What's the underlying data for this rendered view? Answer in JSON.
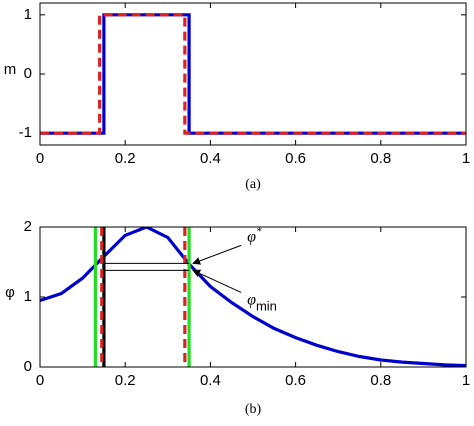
{
  "chart_data": [
    {
      "type": "line",
      "caption": "(a)",
      "ylabel": "m",
      "xlim": [
        0,
        1
      ],
      "xticks": [
        0,
        0.2,
        0.4,
        0.6,
        0.8,
        1
      ],
      "ylim": [
        -1.2,
        1.2
      ],
      "yticks": [
        -1,
        0,
        1
      ],
      "series": [
        {
          "color": "#0000cc",
          "style": "solid",
          "x": [
            0,
            0.15,
            0.15,
            0.35,
            0.35,
            1
          ],
          "values": [
            -1,
            -1,
            1,
            1,
            -1,
            -1
          ]
        },
        {
          "color": "#dd2222",
          "style": "dashed",
          "x": [
            0,
            0.14,
            0.14,
            0.34,
            0.34,
            1
          ],
          "values": [
            -1,
            -1,
            1,
            1,
            -1,
            -1
          ]
        }
      ]
    },
    {
      "type": "line",
      "caption": "(b)",
      "ylabel": "φ",
      "xlim": [
        0,
        1
      ],
      "xticks": [
        0,
        0.2,
        0.4,
        0.6,
        0.8,
        1
      ],
      "ylim": [
        0,
        2
      ],
      "yticks": [
        0,
        1,
        2
      ],
      "series": [
        {
          "color": "#0000cc",
          "style": "solid",
          "x": [
            0,
            0.05,
            0.1,
            0.15,
            0.2,
            0.25,
            0.3,
            0.35,
            0.4,
            0.45,
            0.5,
            0.55,
            0.6,
            0.65,
            0.7,
            0.75,
            0.8,
            0.85,
            0.9,
            0.95,
            1
          ],
          "values": [
            0.95,
            1.05,
            1.27,
            1.58,
            1.88,
            2.0,
            1.85,
            1.47,
            1.15,
            0.92,
            0.72,
            0.55,
            0.42,
            0.31,
            0.22,
            0.15,
            0.1,
            0.07,
            0.05,
            0.03,
            0.02
          ]
        }
      ],
      "vlines": [
        {
          "x": 0.13,
          "color": "#22dd22",
          "style": "solid"
        },
        {
          "x": 0.35,
          "color": "#22dd22",
          "style": "solid"
        },
        {
          "x": 0.15,
          "color": "#000000",
          "style": "solid"
        },
        {
          "x": 0.145,
          "color": "#dd2222",
          "style": "dashed"
        },
        {
          "x": 0.34,
          "color": "#dd2222",
          "style": "dashed"
        }
      ],
      "hlines": [
        {
          "y": 1.48,
          "xmin": 0.15,
          "xmax": 0.35
        },
        {
          "y": 1.38,
          "xmin": 0.15,
          "xmax": 0.35
        }
      ],
      "annotations": [
        {
          "symbol": "φ",
          "superscript": "*",
          "x": 0.35,
          "y": 1.48
        },
        {
          "symbol": "φ",
          "subscript": "min",
          "x": 0.35,
          "y": 1.38
        }
      ]
    }
  ]
}
